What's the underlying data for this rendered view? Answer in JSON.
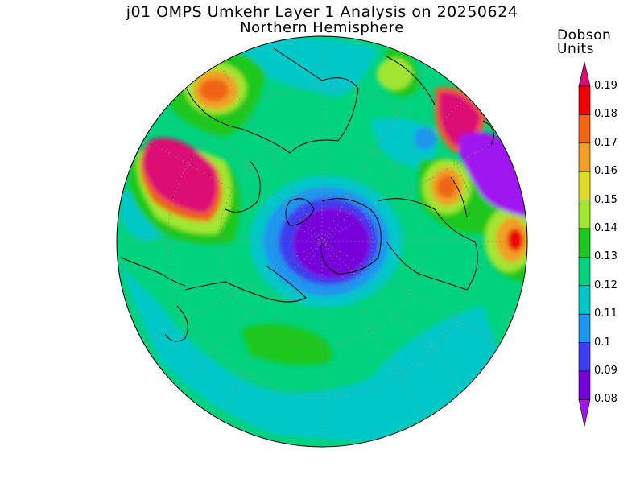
{
  "title": "j01 OMPS Umkehr Layer 1 Analysis on 20250624",
  "subtitle": "Northern Hemisphere",
  "colorbar": {
    "title_line1": "Dobson",
    "title_line2": "Units",
    "levels": [
      "0.19",
      "0.18",
      "0.17",
      "0.16",
      "0.15",
      "0.14",
      "0.13",
      "0.12",
      "0.11",
      "0.1",
      "0.09",
      "0.08"
    ],
    "colors": [
      "#dc0a73",
      "#f00000",
      "#f06414",
      "#f0a028",
      "#dcdc28",
      "#a0e632",
      "#1ec81e",
      "#00d27d",
      "#00c8c8",
      "#1e96f0",
      "#3c3cf0",
      "#7800dc",
      "#a014f0"
    ]
  },
  "map": {
    "projection": "north polar stereographic",
    "coastlines": true,
    "grid": true
  }
}
